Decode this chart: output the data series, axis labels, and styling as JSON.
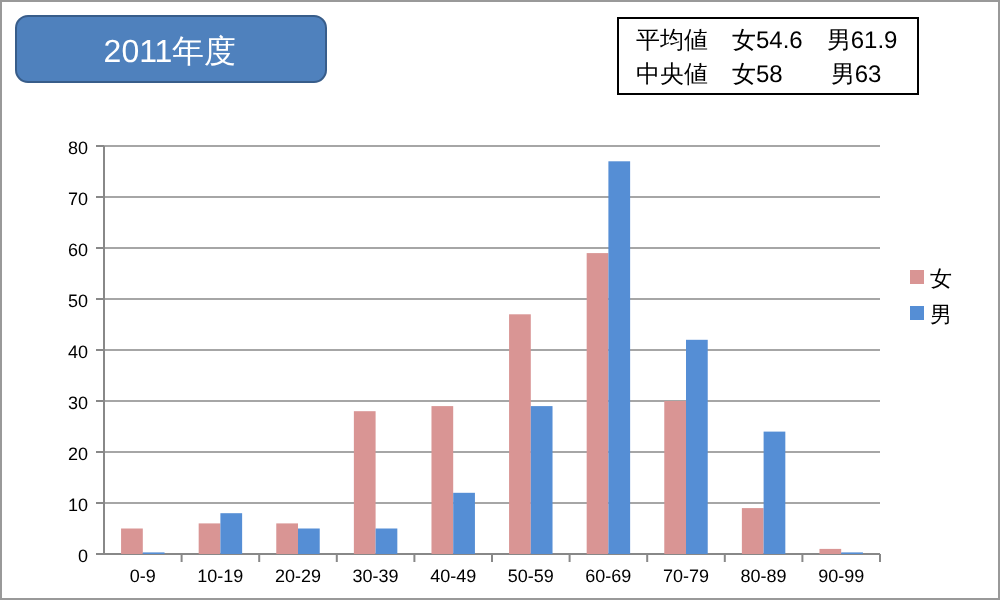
{
  "chart_data": {
    "type": "bar",
    "title": "2011年度",
    "annotations": [
      "平均値　女54.6　男61.9",
      "中央値　女58　　男63"
    ],
    "categories": [
      "0-9",
      "10-19",
      "20-29",
      "30-39",
      "40-49",
      "50-59",
      "60-69",
      "70-79",
      "80-89",
      "90-99"
    ],
    "series": [
      {
        "name": "女",
        "color": "#d99594",
        "values": [
          5,
          6,
          6,
          28,
          29,
          47,
          59,
          30,
          9,
          1
        ]
      },
      {
        "name": "男",
        "color": "#558ed5",
        "values": [
          0,
          8,
          5,
          5,
          12,
          29,
          77,
          42,
          24,
          0
        ]
      }
    ],
    "ylim": [
      0,
      80
    ],
    "yticks": [
      0,
      10,
      20,
      30,
      40,
      50,
      60,
      70,
      80
    ],
    "grid": "y",
    "legend": "right"
  }
}
